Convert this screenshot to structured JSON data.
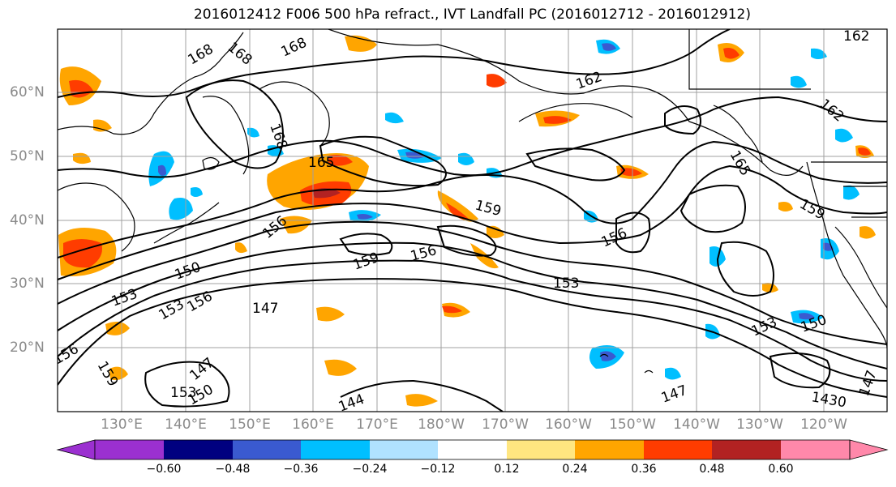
{
  "title": "2016012412 F006 500 hPa refract., IVT Landfall PC (2016012712 - 2016012912)",
  "lat_labels": [
    "60°N",
    "50°N",
    "40°N",
    "30°N",
    "20°N"
  ],
  "lon_labels": [
    "130°E",
    "140°E",
    "150°E",
    "160°E",
    "170°E",
    "180°W",
    "170°W",
    "160°W",
    "150°W",
    "140°W",
    "130°W",
    "120°W"
  ],
  "colorbar": {
    "ticks": [
      "−0.60",
      "−0.48",
      "−0.36",
      "−0.24",
      "−0.12",
      "0.12",
      "0.24",
      "0.36",
      "0.48",
      "0.60"
    ],
    "colors": [
      "#9b30d0",
      "#000080",
      "#3a5ad0",
      "#00bfff",
      "#b0e2ff",
      "#ffffff",
      "#ffe680",
      "#ffa500",
      "#ff3c00",
      "#b22222",
      "#ff88aa"
    ]
  },
  "contour_labels": [
    "168",
    "168",
    "168",
    "165",
    "168",
    "162",
    "162",
    "159",
    "159",
    "159",
    "156",
    "156",
    "156",
    "153",
    "153",
    "150",
    "150",
    "147",
    "147",
    "147",
    "144",
    "153",
    "150",
    "153",
    "156",
    "156",
    "162",
    "165",
    "159",
    "153",
    "1430",
    "147"
  ]
}
